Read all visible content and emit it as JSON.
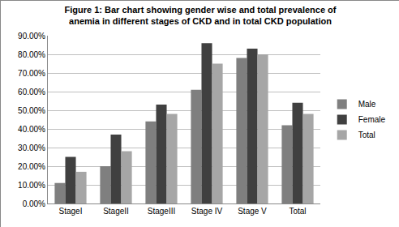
{
  "chart_data": {
    "type": "bar",
    "title": "Figure 1: Bar chart showing gender wise and total prevalence of\nanemia in different stages of CKD and in total CKD population",
    "categories": [
      "StageI",
      "StageII",
      "StageIII",
      "Stage IV",
      "Stage V",
      "Total"
    ],
    "series": [
      {
        "name": "Male",
        "color": "#7f7f7f",
        "values": [
          11,
          20,
          44,
          61,
          78,
          42
        ]
      },
      {
        "name": "Female",
        "color": "#404040",
        "values": [
          25,
          37,
          53,
          86,
          83,
          54
        ]
      },
      {
        "name": "Total",
        "color": "#a6a6a6",
        "values": [
          17,
          28,
          48,
          75,
          80,
          48
        ]
      }
    ],
    "ylim": [
      0,
      90
    ],
    "yticks": [
      {
        "value": 0,
        "label": "0.00%"
      },
      {
        "value": 10,
        "label": "10.00%"
      },
      {
        "value": 20,
        "label": "20.00%"
      },
      {
        "value": 30,
        "label": "30.00%"
      },
      {
        "value": 40,
        "label": "40.00%"
      },
      {
        "value": 50,
        "label": "50.00%"
      },
      {
        "value": 60,
        "label": "60.00%"
      },
      {
        "value": 70,
        "label": "70.00%"
      },
      {
        "value": 80,
        "label": "80.00%"
      },
      {
        "value": 90,
        "label": "90.00%"
      }
    ],
    "grid": true,
    "legend": "right"
  }
}
